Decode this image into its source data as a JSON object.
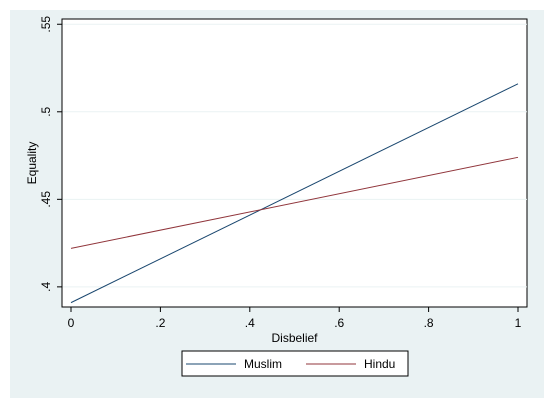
{
  "chart_data": {
    "type": "line",
    "title": "",
    "xlabel": "Disbelief",
    "ylabel": "Equality",
    "xlim": [
      0,
      1
    ],
    "ylim": [
      0.39,
      0.55
    ],
    "x_ticks": [
      0,
      0.2,
      0.4,
      0.6,
      0.8,
      1
    ],
    "x_tick_labels": [
      "0",
      ".2",
      ".4",
      ".6",
      ".8",
      "1"
    ],
    "y_ticks": [
      0.4,
      0.45,
      0.5,
      0.55
    ],
    "y_tick_labels": [
      ".4",
      ".45",
      ".5",
      ".55"
    ],
    "grid": "horizontal",
    "legend_position": "bottom",
    "series": [
      {
        "name": "Muslim",
        "color": "#1a476f",
        "x": [
          0,
          1
        ],
        "y": [
          0.391,
          0.516
        ]
      },
      {
        "name": "Hindu",
        "color": "#90353b",
        "x": [
          0,
          1
        ],
        "y": [
          0.422,
          0.474
        ]
      }
    ]
  },
  "colors": {
    "outer_background": "#eaf2f3",
    "plot_background": "#ffffff",
    "grid": "#eaf2f3"
  }
}
